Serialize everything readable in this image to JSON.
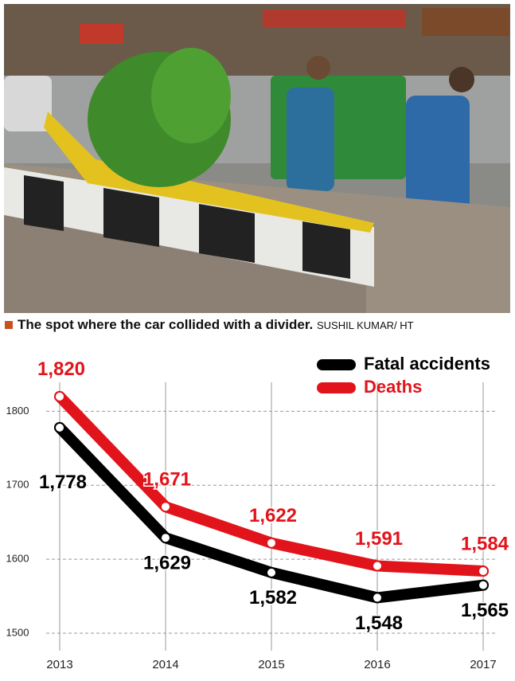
{
  "caption": {
    "text": "The spot where the car collided with a divider.",
    "credit": "SUSHIL KUMAR/ HT"
  },
  "chart_data": {
    "type": "line",
    "categories": [
      "2013",
      "2014",
      "2015",
      "2016",
      "2017"
    ],
    "series": [
      {
        "name": "Fatal accidents",
        "color": "#000000",
        "values": [
          1778,
          1629,
          1582,
          1548,
          1565
        ],
        "value_labels": [
          "1,778",
          "1,629",
          "1,582",
          "1,548",
          "1,565"
        ]
      },
      {
        "name": "Deaths",
        "color": "#e2141b",
        "values": [
          1820,
          1671,
          1622,
          1591,
          1584
        ],
        "value_labels": [
          "1,820",
          "1,671",
          "1,622",
          "1,591",
          "1,584"
        ]
      }
    ],
    "ylim": [
      1500,
      1850
    ],
    "yticks": [
      1500,
      1600,
      1700,
      1800
    ],
    "grid": true,
    "legend": "top-right"
  }
}
